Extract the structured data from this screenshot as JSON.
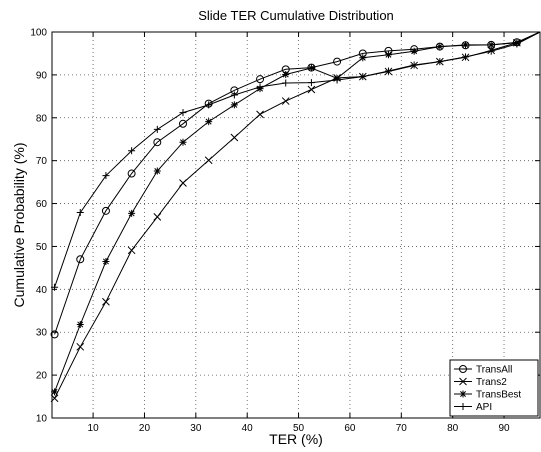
{
  "chart_data": {
    "type": "line",
    "title": "Slide TER Cumulative Distribution",
    "xlabel": "TER (%)",
    "ylabel": "Cumulative Probability (%)",
    "xlim": [
      2,
      97
    ],
    "ylim": [
      10,
      100
    ],
    "xticks": [
      10,
      20,
      30,
      40,
      50,
      60,
      70,
      80,
      90
    ],
    "yticks": [
      10,
      20,
      30,
      40,
      50,
      60,
      70,
      80,
      90,
      100
    ],
    "x_tick_labels": [
      "10",
      "20",
      "30",
      "40",
      "50",
      "60",
      "70",
      "80",
      "90"
    ],
    "y_tick_labels": [
      "10",
      "20",
      "30",
      "40",
      "50",
      "60",
      "70",
      "80",
      "90",
      "100"
    ],
    "grid": true,
    "legend_position": "bottom-right",
    "x": [
      2.5,
      7.5,
      12.5,
      17.5,
      22.5,
      27.5,
      32.5,
      37.5,
      42.5,
      47.5,
      52.5,
      57.5,
      62.5,
      67.5,
      72.5,
      77.5,
      82.5,
      87.5,
      92.5,
      97
    ],
    "series": [
      {
        "name": "TransAll",
        "marker": "circle",
        "values": [
          29.5,
          47,
          58.3,
          67,
          74.3,
          78.6,
          83.3,
          86.4,
          89,
          91.3,
          91.7,
          93.1,
          95,
          95.6,
          96,
          96.6,
          96.9,
          97,
          97.6,
          100
        ]
      },
      {
        "name": "Trans2",
        "marker": "x",
        "values": [
          14.6,
          26.6,
          37.1,
          49.1,
          56.9,
          64.8,
          70.1,
          75.4,
          80.8,
          83.9,
          86.6,
          89.3,
          89.6,
          90.8,
          92.2,
          93.1,
          94.1,
          95.7,
          97.5,
          100
        ]
      },
      {
        "name": "TransBest",
        "marker": "star",
        "values": [
          16.1,
          31.8,
          46.5,
          57.7,
          67.6,
          74.3,
          79.1,
          83,
          86.8,
          90.1,
          91.6,
          89.2,
          94,
          94.7,
          95.5,
          96.6,
          97,
          97,
          97.5,
          100
        ]
      },
      {
        "name": "API",
        "marker": "plus",
        "values": [
          40.5,
          57.9,
          66.5,
          72.3,
          77.3,
          81.2,
          83,
          85.3,
          87.2,
          88.1,
          88.2,
          88.8,
          89.6,
          90.9,
          92.3,
          93.1,
          94.2,
          95.5,
          97.2,
          100
        ]
      }
    ]
  }
}
